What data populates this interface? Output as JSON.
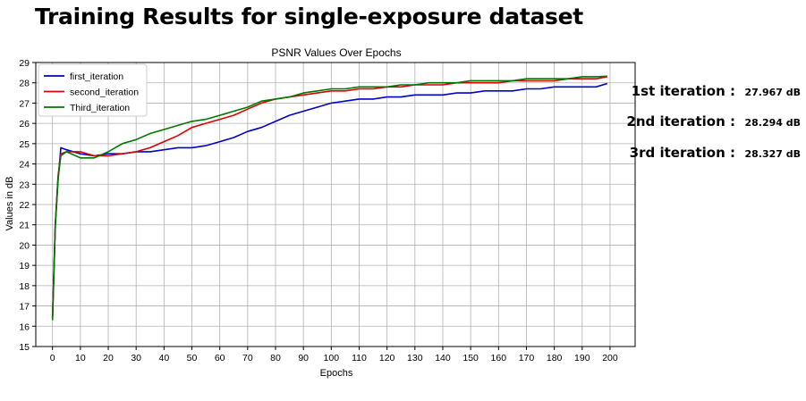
{
  "slide": {
    "title": "Training Results for single-exposure dataset"
  },
  "results": [
    {
      "label": "1st iteration",
      "sep": " :  ",
      "value": "27.967 dB"
    },
    {
      "label": "2nd iteration",
      "sep": " :  ",
      "value": "28.294 dB"
    },
    {
      "label": "3rd iteration",
      "sep": " :  ",
      "value": "28.327 dB"
    }
  ],
  "chart_data": {
    "type": "line",
    "title": "PSNR Values Over Epochs",
    "xlabel": "Epochs",
    "ylabel": "Values in dB",
    "xlim": [
      -6,
      209
    ],
    "ylim": [
      15,
      29
    ],
    "xticks": [
      0,
      10,
      20,
      30,
      40,
      50,
      60,
      70,
      80,
      90,
      100,
      110,
      120,
      130,
      140,
      150,
      160,
      170,
      180,
      190,
      200
    ],
    "yticks": [
      15,
      16,
      17,
      18,
      19,
      20,
      21,
      22,
      23,
      24,
      25,
      26,
      27,
      28,
      29
    ],
    "grid": true,
    "legend_position": "upper-left",
    "x": [
      0,
      1,
      2,
      3,
      5,
      10,
      15,
      20,
      25,
      30,
      35,
      40,
      45,
      50,
      55,
      60,
      65,
      70,
      75,
      80,
      85,
      90,
      95,
      100,
      105,
      110,
      115,
      120,
      125,
      130,
      135,
      140,
      145,
      150,
      155,
      160,
      165,
      170,
      175,
      180,
      185,
      190,
      195,
      199
    ],
    "series": [
      {
        "name": "first_iteration",
        "color": "#0000cc",
        "values": [
          16.4,
          21.0,
          23.2,
          24.8,
          24.7,
          24.5,
          24.4,
          24.5,
          24.5,
          24.6,
          24.6,
          24.7,
          24.8,
          24.8,
          24.9,
          25.1,
          25.3,
          25.6,
          25.8,
          26.1,
          26.4,
          26.6,
          26.8,
          27.0,
          27.1,
          27.2,
          27.2,
          27.3,
          27.3,
          27.4,
          27.4,
          27.4,
          27.5,
          27.5,
          27.6,
          27.6,
          27.6,
          27.7,
          27.7,
          27.8,
          27.8,
          27.8,
          27.8,
          27.967
        ]
      },
      {
        "name": "second_iteration",
        "color": "#dd0000",
        "values": [
          16.4,
          21.0,
          23.4,
          24.5,
          24.6,
          24.6,
          24.4,
          24.4,
          24.5,
          24.6,
          24.8,
          25.1,
          25.4,
          25.8,
          26.0,
          26.2,
          26.4,
          26.7,
          27.0,
          27.2,
          27.3,
          27.4,
          27.5,
          27.6,
          27.6,
          27.7,
          27.7,
          27.8,
          27.8,
          27.9,
          27.9,
          27.9,
          28.0,
          28.0,
          28.0,
          28.0,
          28.1,
          28.1,
          28.1,
          28.1,
          28.2,
          28.2,
          28.2,
          28.294
        ]
      },
      {
        "name": "Third_iteration",
        "color": "#007700",
        "values": [
          16.3,
          20.9,
          23.3,
          24.4,
          24.6,
          24.3,
          24.3,
          24.6,
          25.0,
          25.2,
          25.5,
          25.7,
          25.9,
          26.1,
          26.2,
          26.4,
          26.6,
          26.8,
          27.1,
          27.2,
          27.3,
          27.5,
          27.6,
          27.7,
          27.7,
          27.8,
          27.8,
          27.8,
          27.9,
          27.9,
          28.0,
          28.0,
          28.0,
          28.1,
          28.1,
          28.1,
          28.1,
          28.2,
          28.2,
          28.2,
          28.2,
          28.3,
          28.3,
          28.327
        ]
      }
    ]
  }
}
